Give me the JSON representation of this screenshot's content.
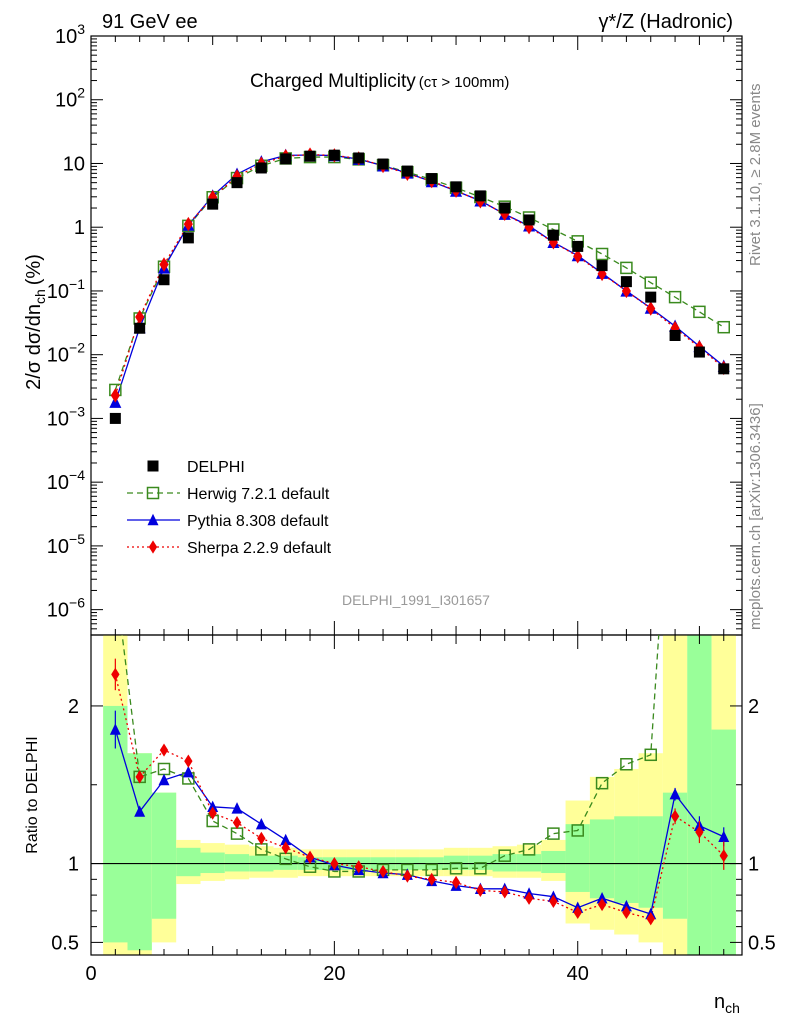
{
  "header": {
    "left": "91 GeV ee",
    "right": "γ*/Z (Hadronic)"
  },
  "side_labels": {
    "top": "Rivet 3.1.10, ≥ 2.8M events",
    "bottom": "mcplots.cern.ch [arXiv:1306.3436]"
  },
  "chart_data": [
    {
      "type": "line",
      "title": "Charged Multiplicity",
      "subtitle": "(cτ > 100mm)",
      "analysis_tag": "DELPHI_1991_I301657",
      "ylabel": "2/σ dσ/dn",
      "ylabel_sub": "ch",
      "ylabel_unit": "(%)",
      "yscale": "log",
      "ylim": [
        4e-07,
        1000
      ],
      "xlim": [
        0,
        53.5
      ],
      "y_ticks": [
        {
          "v": 1000,
          "base": "10",
          "exp": "3"
        },
        {
          "v": 100,
          "base": "10",
          "exp": "2"
        },
        {
          "v": 10,
          "base": "10",
          "exp": ""
        },
        {
          "v": 1,
          "base": "1",
          "exp": ""
        },
        {
          "v": 0.1,
          "base": "10",
          "exp": "−1"
        },
        {
          "v": 0.01,
          "base": "10",
          "exp": "−2"
        },
        {
          "v": 0.001,
          "base": "10",
          "exp": "−3"
        },
        {
          "v": 0.0001,
          "base": "10",
          "exp": "−4"
        },
        {
          "v": 1e-05,
          "base": "10",
          "exp": "−5"
        },
        {
          "v": 1e-06,
          "base": "10",
          "exp": "−6"
        }
      ],
      "legend_position": "lower-left",
      "x": [
        2,
        4,
        6,
        8,
        10,
        12,
        14,
        16,
        18,
        20,
        22,
        24,
        26,
        28,
        30,
        32,
        34,
        36,
        38,
        40,
        42,
        44,
        46,
        48,
        50,
        52
      ],
      "series": [
        {
          "name": "DELPHI",
          "style": "data",
          "color": "#000000",
          "marker": "square-filled",
          "values": [
            0.001,
            0.026,
            0.15,
            0.68,
            2.3,
            5.0,
            8.5,
            11.8,
            13.0,
            13.5,
            12.2,
            9.8,
            7.6,
            5.8,
            4.3,
            3.1,
            2.0,
            1.3,
            0.75,
            0.5,
            0.25,
            0.14,
            0.08,
            0.02,
            0.011,
            0.006
          ]
        },
        {
          "name": "Herwig 7.2.1 default",
          "style": "dashed",
          "color": "#3a8a1e",
          "marker": "square-open",
          "values": [
            0.0028,
            0.037,
            0.24,
            1.05,
            2.95,
            5.9,
            9.2,
            12.0,
            12.6,
            12.6,
            11.6,
            9.4,
            7.3,
            5.6,
            4.15,
            2.98,
            2.1,
            1.42,
            0.92,
            0.6,
            0.38,
            0.23,
            0.135,
            0.08,
            0.047,
            0.027
          ]
        },
        {
          "name": "Pythia 8.308 default",
          "style": "solid",
          "color": "#0000dd",
          "marker": "triangle",
          "values": [
            0.0018,
            0.0265,
            0.23,
            1.08,
            3.1,
            6.8,
            10.6,
            13.4,
            13.6,
            13.3,
            11.7,
            9.2,
            7.1,
            5.2,
            3.7,
            2.6,
            1.6,
            1.05,
            0.58,
            0.36,
            0.19,
            0.1,
            0.054,
            0.028,
            0.0135,
            0.0066
          ]
        },
        {
          "name": "Sherpa 2.2.9 default",
          "style": "dotted",
          "color": "#ee0000",
          "marker": "diamond",
          "values": [
            0.0023,
            0.039,
            0.26,
            1.12,
            2.95,
            6.25,
            9.9,
            13.0,
            13.8,
            13.4,
            12.0,
            9.15,
            6.9,
            5.3,
            3.75,
            2.55,
            1.62,
            1.0,
            0.58,
            0.35,
            0.185,
            0.1,
            0.053,
            0.026,
            0.013,
            0.0062
          ]
        }
      ]
    },
    {
      "type": "line",
      "ylabel": "Ratio to DELPHI",
      "xlabel": "n",
      "xlabel_sub": "ch",
      "ylim": [
        0.42,
        2.45
      ],
      "y_ticks": [
        "0.5",
        "1",
        "2"
      ],
      "y_tick_values": [
        0.5,
        1,
        2
      ],
      "x_ticks": [
        "0",
        "20",
        "40"
      ],
      "x_tick_values": [
        0,
        20,
        40
      ],
      "reference_line": 1,
      "bands": [
        {
          "x0": 1,
          "x1": 3,
          "yellow": [
            0.3,
            2.45
          ],
          "green": [
            0.5,
            2.0
          ]
        },
        {
          "x0": 3,
          "x1": 5,
          "yellow": [
            0.3,
            1.7
          ],
          "green": [
            0.45,
            1.7
          ]
        },
        {
          "x0": 5,
          "x1": 7,
          "yellow": [
            0.5,
            1.45
          ],
          "green": [
            0.65,
            1.45
          ]
        },
        {
          "x0": 7,
          "x1": 9,
          "yellow": [
            0.87,
            1.15
          ],
          "green": [
            0.92,
            1.1
          ]
        },
        {
          "x0": 9,
          "x1": 11,
          "yellow": [
            0.89,
            1.13
          ],
          "green": [
            0.94,
            1.07
          ]
        },
        {
          "x0": 11,
          "x1": 13,
          "yellow": [
            0.9,
            1.12
          ],
          "green": [
            0.95,
            1.06
          ]
        },
        {
          "x0": 13,
          "x1": 15,
          "yellow": [
            0.91,
            1.11
          ],
          "green": [
            0.95,
            1.05
          ]
        },
        {
          "x0": 15,
          "x1": 17,
          "yellow": [
            0.91,
            1.1
          ],
          "green": [
            0.96,
            1.05
          ]
        },
        {
          "x0": 17,
          "x1": 19,
          "yellow": [
            0.92,
            1.09
          ],
          "green": [
            0.96,
            1.04
          ]
        },
        {
          "x0": 19,
          "x1": 21,
          "yellow": [
            0.92,
            1.09
          ],
          "green": [
            0.96,
            1.04
          ]
        },
        {
          "x0": 21,
          "x1": 23,
          "yellow": [
            0.92,
            1.09
          ],
          "green": [
            0.96,
            1.04
          ]
        },
        {
          "x0": 23,
          "x1": 25,
          "yellow": [
            0.92,
            1.09
          ],
          "green": [
            0.96,
            1.04
          ]
        },
        {
          "x0": 25,
          "x1": 27,
          "yellow": [
            0.92,
            1.09
          ],
          "green": [
            0.96,
            1.04
          ]
        },
        {
          "x0": 27,
          "x1": 29,
          "yellow": [
            0.92,
            1.09
          ],
          "green": [
            0.96,
            1.04
          ]
        },
        {
          "x0": 29,
          "x1": 31,
          "yellow": [
            0.92,
            1.1
          ],
          "green": [
            0.96,
            1.05
          ]
        },
        {
          "x0": 31,
          "x1": 33,
          "yellow": [
            0.92,
            1.1
          ],
          "green": [
            0.96,
            1.05
          ]
        },
        {
          "x0": 33,
          "x1": 35,
          "yellow": [
            0.91,
            1.11
          ],
          "green": [
            0.95,
            1.06
          ]
        },
        {
          "x0": 35,
          "x1": 37,
          "yellow": [
            0.91,
            1.12
          ],
          "green": [
            0.95,
            1.06
          ]
        },
        {
          "x0": 37,
          "x1": 39,
          "yellow": [
            0.89,
            1.15
          ],
          "green": [
            0.94,
            1.08
          ]
        },
        {
          "x0": 39,
          "x1": 41,
          "yellow": [
            0.62,
            1.4
          ],
          "green": [
            0.82,
            1.25
          ]
        },
        {
          "x0": 41,
          "x1": 43,
          "yellow": [
            0.58,
            1.55
          ],
          "green": [
            0.78,
            1.28
          ]
        },
        {
          "x0": 43,
          "x1": 45,
          "yellow": [
            0.55,
            1.6
          ],
          "green": [
            0.75,
            1.3
          ]
        },
        {
          "x0": 45,
          "x1": 47,
          "yellow": [
            0.5,
            1.7
          ],
          "green": [
            0.72,
            1.3
          ]
        },
        {
          "x0": 47,
          "x1": 49,
          "yellow": [
            0.3,
            2.45
          ],
          "green": [
            0.65,
            1.45
          ]
        },
        {
          "x0": 49,
          "x1": 51,
          "yellow": [
            0.3,
            2.45
          ],
          "green": [
            0.3,
            2.45
          ]
        },
        {
          "x0": 51,
          "x1": 53,
          "yellow": [
            0.3,
            2.45
          ],
          "green": [
            0.3,
            1.85
          ]
        }
      ],
      "series": [
        {
          "name": "Herwig 7.2.1 default",
          "style": "dashed",
          "color": "#3a8a1e",
          "marker": "square-open",
          "values": [
            2.8,
            1.55,
            1.6,
            1.54,
            1.27,
            1.19,
            1.09,
            1.03,
            0.98,
            0.95,
            0.95,
            0.96,
            0.96,
            0.96,
            0.97,
            0.97,
            1.05,
            1.09,
            1.19,
            1.21,
            1.51,
            1.63,
            1.69,
            4.0,
            null,
            null
          ]
        },
        {
          "name": "Pythia 8.308 default",
          "style": "solid",
          "color": "#0000dd",
          "marker": "triangle",
          "errors": [
            0.12,
            0.03,
            null,
            0.03,
            null,
            null,
            null,
            null,
            null,
            null,
            null,
            null,
            null,
            null,
            null,
            null,
            null,
            null,
            null,
            null,
            null,
            null,
            null,
            0.04,
            0.06,
            0.06
          ],
          "values": [
            1.85,
            1.33,
            1.53,
            1.58,
            1.36,
            1.35,
            1.25,
            1.15,
            1.04,
            0.99,
            0.96,
            0.94,
            0.93,
            0.89,
            0.86,
            0.84,
            0.84,
            0.81,
            0.79,
            0.72,
            0.78,
            0.73,
            0.68,
            1.44,
            1.24,
            1.17
          ]
        },
        {
          "name": "Sherpa 2.2.9 default",
          "style": "dotted",
          "color": "#ee0000",
          "marker": "diamond",
          "errors": [
            0.1,
            null,
            null,
            null,
            null,
            null,
            null,
            null,
            null,
            null,
            null,
            null,
            null,
            null,
            null,
            null,
            null,
            null,
            null,
            null,
            null,
            null,
            null,
            0.05,
            0.07,
            0.09
          ],
          "values": [
            2.2,
            1.55,
            1.72,
            1.65,
            1.32,
            1.26,
            1.16,
            1.1,
            1.04,
            1.0,
            0.98,
            0.95,
            0.92,
            0.9,
            0.88,
            0.83,
            0.82,
            0.78,
            0.76,
            0.69,
            0.74,
            0.69,
            0.65,
            1.3,
            1.2,
            1.05
          ]
        }
      ]
    }
  ]
}
